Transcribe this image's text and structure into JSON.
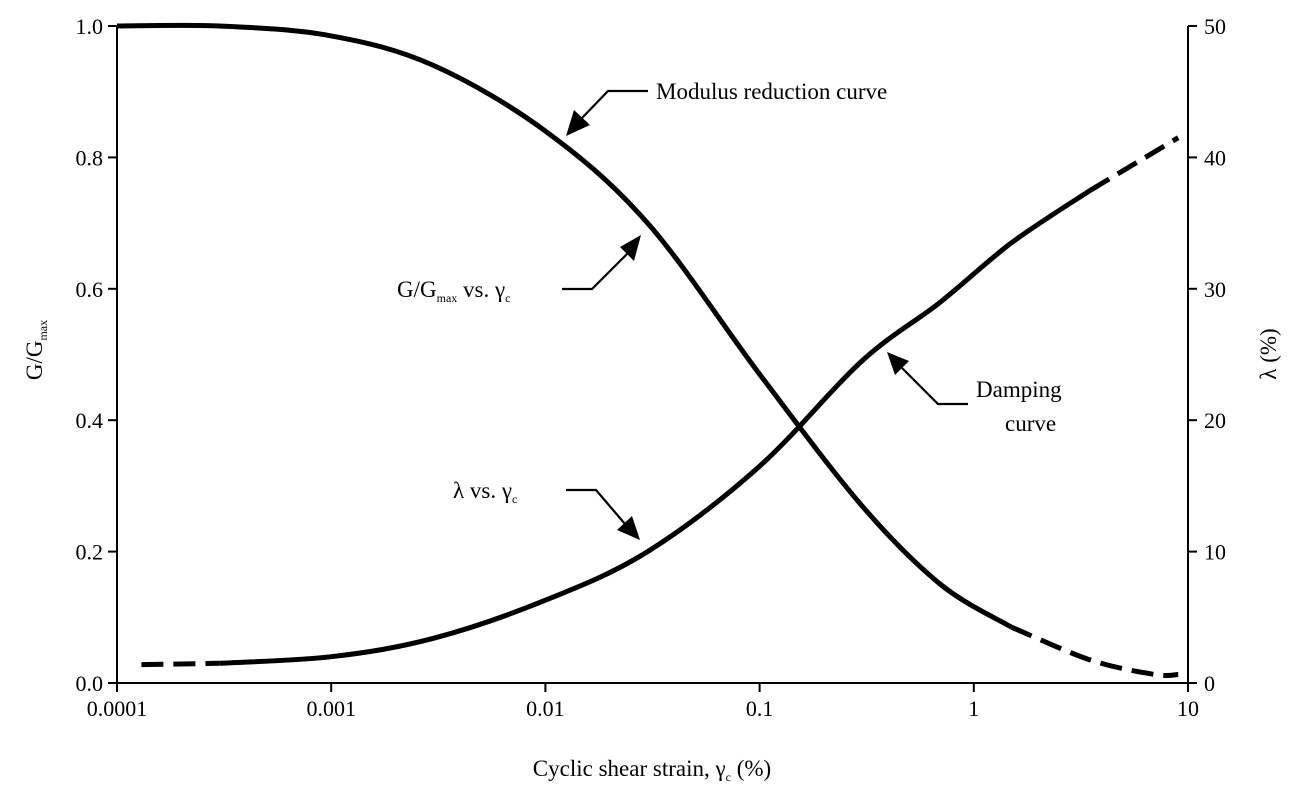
{
  "chart_data": {
    "type": "line",
    "title": "",
    "xscale": "log",
    "xlim": [
      0.0001,
      10
    ],
    "ylim_left": [
      0,
      1
    ],
    "ylim_right": [
      0,
      50
    ],
    "x_ticks": [
      "0.0001",
      "0.001",
      "0.01",
      "0.1",
      "1",
      "10"
    ],
    "y_left_ticks": [
      "0.0",
      "0.2",
      "0.4",
      "0.6",
      "0.8",
      "1.0"
    ],
    "y_right_ticks": [
      "0",
      "10",
      "20",
      "30",
      "40",
      "50"
    ],
    "xlabel": {
      "main": "Cyclic shear strain, γ",
      "sub": "c",
      "tail": " (%)"
    },
    "ylabel_left": {
      "main": "G/G",
      "sub": "max"
    },
    "ylabel_right": "λ (%)",
    "grid": false,
    "legend": "none",
    "series": [
      {
        "name": "Modulus reduction curve",
        "axis": "left",
        "x": [
          0.0001,
          0.0003,
          0.001,
          0.003,
          0.01,
          0.03,
          0.1,
          0.3,
          0.7,
          1.5,
          3.5,
          7,
          9
        ],
        "y": [
          1.0,
          1.0,
          0.985,
          0.94,
          0.84,
          0.7,
          0.47,
          0.27,
          0.15,
          0.085,
          0.035,
          0.013,
          0.013
        ],
        "dashed_from_x": 3
      },
      {
        "name": "Damping curve",
        "axis": "right",
        "x": [
          0.00013,
          0.0003,
          0.001,
          0.003,
          0.01,
          0.03,
          0.1,
          0.3,
          0.7,
          1.5,
          3.5,
          9
        ],
        "y": [
          1.4,
          1.5,
          2.0,
          3.4,
          6.3,
          10.0,
          16.5,
          24.5,
          29.0,
          33.5,
          37.5,
          41.5
        ],
        "dashed_to_x": 0.0003,
        "dashed_from_x": 4.5
      }
    ],
    "annotations": {
      "modulus": {
        "text": "Modulus reduction curve"
      },
      "g_ratio": {
        "main": "G/G",
        "sub": "max",
        "tail": " vs. γ",
        "sub2": "c"
      },
      "damping_line1": "Damping",
      "damping_line2": "curve",
      "lambda": {
        "main": "λ vs. γ",
        "sub": "c"
      }
    }
  }
}
